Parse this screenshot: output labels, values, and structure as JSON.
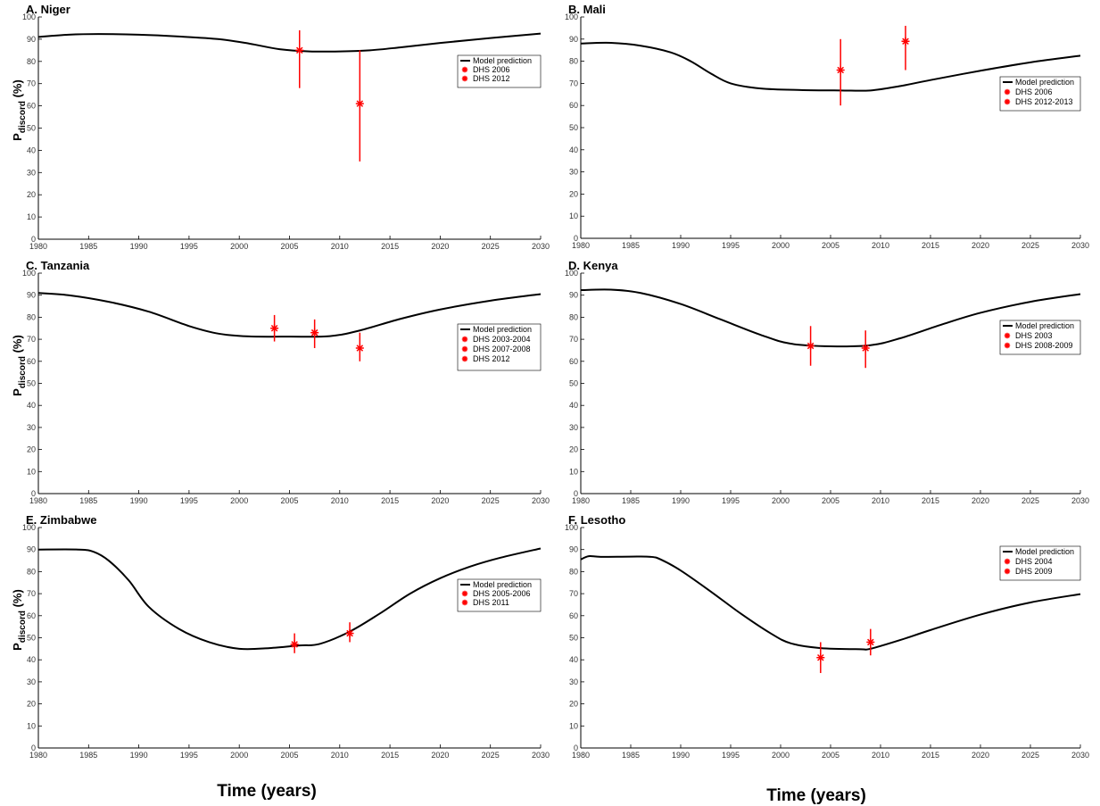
{
  "figure": {
    "xlabels": [
      "Time (years)",
      "Time (years)"
    ],
    "ylabel_main": "P",
    "ylabel_sub": "discord",
    "ylabel_suffix": " (%)"
  },
  "colors": {
    "model_line": "#000000",
    "dhs_marker": "#ff0000",
    "axis": "#000000"
  },
  "chart_data": [
    {
      "type": "line",
      "title": "A. Niger",
      "xlim": [
        1980,
        2030
      ],
      "ylim": [
        0,
        100
      ],
      "xticks": [
        1980,
        1985,
        1990,
        1995,
        2000,
        2005,
        2010,
        2015,
        2020,
        2025,
        2030
      ],
      "yticks": [
        0,
        10,
        20,
        30,
        40,
        50,
        60,
        70,
        80,
        90,
        100
      ],
      "ylabel": "P discord (%)",
      "legend_position": "upper-right",
      "model": {
        "name": "Model prediction",
        "x": [
          1980,
          1983,
          1986,
          1990,
          1994,
          1998,
          2001,
          2004,
          2007,
          2010,
          2013,
          2016,
          2020,
          2025,
          2030
        ],
        "y": [
          91,
          92,
          92.3,
          92,
          91.2,
          90,
          88,
          85.5,
          84.5,
          84.5,
          85,
          86.3,
          88.3,
          90.5,
          92.5
        ]
      },
      "dhs": [
        {
          "name": "DHS 2006",
          "x": 2006,
          "y": 85,
          "low": 68,
          "high": 94
        },
        {
          "name": "DHS 2012",
          "x": 2012,
          "y": 61,
          "low": 35,
          "high": 85
        }
      ]
    },
    {
      "type": "line",
      "title": "B. Mali",
      "xlim": [
        1980,
        2030
      ],
      "ylim": [
        0,
        100
      ],
      "xticks": [
        1980,
        1985,
        1990,
        1995,
        2000,
        2005,
        2010,
        2015,
        2020,
        2025,
        2030
      ],
      "yticks": [
        0,
        10,
        20,
        30,
        40,
        50,
        60,
        70,
        80,
        90,
        100
      ],
      "ylabel": "",
      "legend_position": "upper-right",
      "model": {
        "name": "Model prediction",
        "x": [
          1980,
          1983,
          1986,
          1989,
          1991,
          1993,
          1995,
          1998,
          2002,
          2006,
          2009,
          2012,
          2015,
          2020,
          2025,
          2030
        ],
        "y": [
          88,
          88.3,
          87,
          84,
          80,
          74.5,
          70,
          67.7,
          67,
          66.8,
          66.8,
          68.8,
          71.5,
          75.7,
          79.5,
          82.5
        ]
      },
      "dhs": [
        {
          "name": "DHS 2006",
          "x": 2006,
          "y": 76,
          "low": 60,
          "high": 90
        },
        {
          "name": "DHS 2012-2013",
          "x": 2012.5,
          "y": 89,
          "low": 76,
          "high": 96
        }
      ]
    },
    {
      "type": "line",
      "title": "C. Tanzania",
      "xlim": [
        1980,
        2030
      ],
      "ylim": [
        0,
        100
      ],
      "xticks": [
        1980,
        1985,
        1990,
        1995,
        2000,
        2005,
        2010,
        2015,
        2020,
        2025,
        2030
      ],
      "yticks": [
        0,
        10,
        20,
        30,
        40,
        50,
        60,
        70,
        80,
        90,
        100
      ],
      "ylabel": "P discord (%)",
      "legend_position": "upper-right",
      "model": {
        "name": "Model prediction",
        "x": [
          1980,
          1983,
          1987,
          1991,
          1995,
          1998,
          2001,
          2005,
          2009,
          2012,
          2016,
          2020,
          2025,
          2030
        ],
        "y": [
          91,
          90,
          87,
          82.5,
          76,
          72.5,
          71.3,
          71.2,
          71.4,
          74,
          79.2,
          83.5,
          87.5,
          90.5
        ]
      },
      "dhs": [
        {
          "name": "DHS 2003-2004",
          "x": 2003.5,
          "y": 75,
          "low": 69,
          "high": 81
        },
        {
          "name": "DHS 2007-2008",
          "x": 2007.5,
          "y": 73,
          "low": 66,
          "high": 79
        },
        {
          "name": "DHS 2012",
          "x": 2012,
          "y": 66,
          "low": 60,
          "high": 73
        }
      ]
    },
    {
      "type": "line",
      "title": "D. Kenya",
      "xlim": [
        1980,
        2030
      ],
      "ylim": [
        0,
        100
      ],
      "xticks": [
        1980,
        1985,
        1990,
        1995,
        2000,
        2005,
        2010,
        2015,
        2020,
        2025,
        2030
      ],
      "yticks": [
        0,
        10,
        20,
        30,
        40,
        50,
        60,
        70,
        80,
        90,
        100
      ],
      "ylabel": "",
      "legend_position": "upper-right",
      "model": {
        "name": "Model prediction",
        "x": [
          1980,
          1983,
          1986,
          1990,
          1994,
          1998,
          2001,
          2005,
          2009,
          2012,
          2016,
          2020,
          2025,
          2030
        ],
        "y": [
          92.3,
          92.5,
          91,
          86,
          79,
          72,
          68,
          66.8,
          67.3,
          70.5,
          76.5,
          82,
          87,
          90.5
        ]
      },
      "dhs": [
        {
          "name": "DHS 2003",
          "x": 2003,
          "y": 67,
          "low": 58,
          "high": 76
        },
        {
          "name": "DHS 2008-2009",
          "x": 2008.5,
          "y": 66,
          "low": 57,
          "high": 74
        }
      ]
    },
    {
      "type": "line",
      "title": "E. Zimbabwe",
      "xlim": [
        1980,
        2030
      ],
      "ylim": [
        0,
        100
      ],
      "xticks": [
        1980,
        1985,
        1990,
        1995,
        2000,
        2005,
        2010,
        2015,
        2020,
        2025,
        2030
      ],
      "yticks": [
        0,
        10,
        20,
        30,
        40,
        50,
        60,
        70,
        80,
        90,
        100
      ],
      "ylabel": "P discord (%)",
      "legend_position": "upper-right",
      "model": {
        "name": "Model prediction",
        "x": [
          1980,
          1984,
          1985.5,
          1987,
          1989,
          1991,
          1994,
          1997,
          2000,
          2003,
          2006,
          2008,
          2011,
          2014,
          2017,
          2020,
          2023,
          2026,
          2030
        ],
        "y": [
          90,
          90,
          89,
          85,
          76,
          64,
          54,
          48,
          45,
          45.3,
          46.5,
          47.2,
          52.8,
          61,
          70,
          77,
          82.3,
          86.3,
          90.5
        ]
      },
      "dhs": [
        {
          "name": "DHS 2005-2006",
          "x": 2005.5,
          "y": 47,
          "low": 43,
          "high": 52
        },
        {
          "name": "DHS 2011",
          "x": 2011,
          "y": 52,
          "low": 48,
          "high": 57
        }
      ]
    },
    {
      "type": "line",
      "title": "F. Lesotho",
      "xlim": [
        1980,
        2030
      ],
      "ylim": [
        0,
        100
      ],
      "xticks": [
        1980,
        1985,
        1990,
        1995,
        2000,
        2005,
        2010,
        2015,
        2020,
        2025,
        2030
      ],
      "yticks": [
        0,
        10,
        20,
        30,
        40,
        50,
        60,
        70,
        80,
        90,
        100
      ],
      "ylabel": "",
      "legend_position": "upper-right",
      "model": {
        "name": "Model prediction",
        "x": [
          1980,
          1980.8,
          1982,
          1985,
          1987,
          1988,
          1990,
          1993,
          1996,
          1999,
          2001,
          2004,
          2008,
          2009,
          2012,
          2015,
          2020,
          2025,
          2030
        ],
        "y": [
          85.5,
          87,
          86.7,
          86.8,
          86.7,
          85.5,
          80.5,
          71,
          61,
          52,
          47.5,
          45.3,
          44.8,
          45,
          49,
          53.5,
          60.5,
          66,
          69.8
        ]
      },
      "dhs": [
        {
          "name": "DHS 2004",
          "x": 2004,
          "y": 41,
          "low": 34,
          "high": 48
        },
        {
          "name": "DHS 2009",
          "x": 2009,
          "y": 48,
          "low": 42,
          "high": 54
        }
      ]
    }
  ]
}
